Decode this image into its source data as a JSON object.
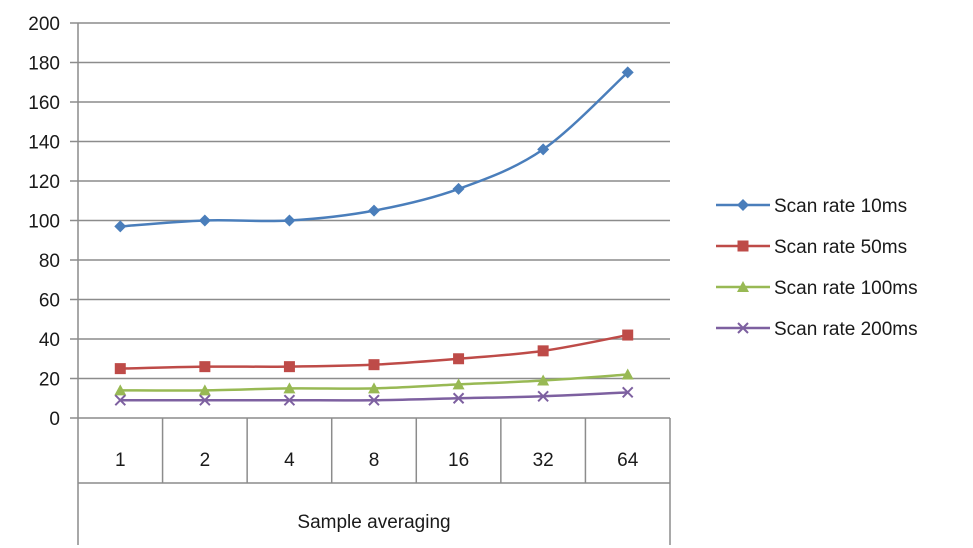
{
  "chart_data": {
    "type": "line",
    "title": "",
    "xlabel": "Sample averaging",
    "ylabel": "",
    "categories": [
      "1",
      "2",
      "4",
      "8",
      "16",
      "32",
      "64"
    ],
    "ylim": [
      0,
      200
    ],
    "yticks": [
      0,
      20,
      40,
      60,
      80,
      100,
      120,
      140,
      160,
      180,
      200
    ],
    "grid": true,
    "legend_position": "right",
    "series": [
      {
        "name": "Scan rate 10ms",
        "values": [
          97,
          100,
          100,
          105,
          116,
          136,
          175
        ],
        "color": "#4a7ebb",
        "marker": "diamond"
      },
      {
        "name": "Scan rate 50ms",
        "values": [
          25,
          26,
          26,
          27,
          30,
          34,
          42
        ],
        "color": "#be4b48",
        "marker": "square"
      },
      {
        "name": "Scan rate 100ms",
        "values": [
          14,
          14,
          15,
          15,
          17,
          19,
          22
        ],
        "color": "#98b954",
        "marker": "triangle"
      },
      {
        "name": "Scan rate 200ms",
        "values": [
          9,
          9,
          9,
          9,
          10,
          11,
          13
        ],
        "color": "#7d60a0",
        "marker": "x"
      }
    ]
  }
}
